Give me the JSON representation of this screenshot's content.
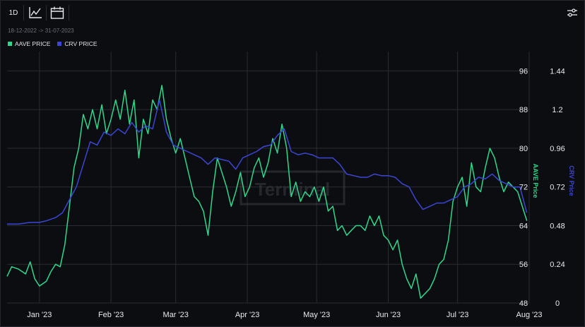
{
  "toolbar": {
    "interval_label": "1D",
    "icons": [
      "line-chart-icon",
      "calendar-icon",
      "sliders-icon"
    ]
  },
  "date_range": "18-12-2022 -> 31-07-2023",
  "colors": {
    "aave": "#2ed88a",
    "crv": "#3b46d6",
    "background": "#0c0d11",
    "grid": "#2a2c33",
    "text": "#e8e9ee",
    "muted": "#6b6f7a"
  },
  "chart_data": {
    "type": "line",
    "title": "",
    "legend": {
      "placement": "top-left",
      "entries": [
        "AAVE PRICE",
        "CRV PRICE"
      ]
    },
    "watermark": "Terminal",
    "grid": true,
    "x_ticks": [
      {
        "label": "Jan '23",
        "date": "2023-01-01"
      },
      {
        "label": "Feb '23",
        "date": "2023-02-01"
      },
      {
        "label": "Mar '23",
        "date": "2023-03-01"
      },
      {
        "label": "Apr '23",
        "date": "2023-04-01"
      },
      {
        "label": "May '23",
        "date": "2023-05-01"
      },
      {
        "label": "Jun '23",
        "date": "2023-06-01"
      },
      {
        "label": "Jul '23",
        "date": "2023-07-01"
      },
      {
        "label": "Aug '23",
        "date": "2023-08-01"
      }
    ],
    "x_range": [
      "2022-12-18",
      "2023-08-01"
    ],
    "left_axis": {
      "label": "AAVE Price",
      "range": [
        48,
        100
      ],
      "ticks": [
        48,
        56,
        64,
        72,
        80,
        88,
        96
      ]
    },
    "right_axis": {
      "label": "CRV Price",
      "range": [
        0,
        1.56
      ],
      "ticks": [
        "0",
        "0.24",
        "0.48",
        "0.72",
        "0.96",
        "1.2",
        "1.44"
      ]
    },
    "series": [
      {
        "name": "AAVE PRICE",
        "axis": "left",
        "points": [
          [
            "2022-12-18",
            53.5
          ],
          [
            "2022-12-20",
            55.5
          ],
          [
            "2022-12-23",
            55
          ],
          [
            "2022-12-26",
            54
          ],
          [
            "2022-12-28",
            56.5
          ],
          [
            "2022-12-30",
            53
          ],
          [
            "2023-01-01",
            51.5
          ],
          [
            "2023-01-04",
            52.5
          ],
          [
            "2023-01-06",
            54.5
          ],
          [
            "2023-01-08",
            56
          ],
          [
            "2023-01-10",
            55.5
          ],
          [
            "2023-01-12",
            60
          ],
          [
            "2023-01-14",
            68
          ],
          [
            "2023-01-16",
            76
          ],
          [
            "2023-01-18",
            80
          ],
          [
            "2023-01-20",
            87
          ],
          [
            "2023-01-22",
            84
          ],
          [
            "2023-01-24",
            88
          ],
          [
            "2023-01-26",
            84
          ],
          [
            "2023-01-28",
            89
          ],
          [
            "2023-01-30",
            83
          ],
          [
            "2023-02-01",
            86
          ],
          [
            "2023-02-03",
            90
          ],
          [
            "2023-02-05",
            86
          ],
          [
            "2023-02-07",
            92
          ],
          [
            "2023-02-09",
            85
          ],
          [
            "2023-02-11",
            90
          ],
          [
            "2023-02-13",
            78
          ],
          [
            "2023-02-15",
            86
          ],
          [
            "2023-02-17",
            83
          ],
          [
            "2023-02-19",
            90
          ],
          [
            "2023-02-21",
            88
          ],
          [
            "2023-02-23",
            93
          ],
          [
            "2023-02-25",
            86
          ],
          [
            "2023-02-27",
            82
          ],
          [
            "2023-03-01",
            79
          ],
          [
            "2023-03-03",
            82
          ],
          [
            "2023-03-05",
            78
          ],
          [
            "2023-03-07",
            74
          ],
          [
            "2023-03-09",
            70
          ],
          [
            "2023-03-11",
            69
          ],
          [
            "2023-03-13",
            67
          ],
          [
            "2023-03-15",
            62
          ],
          [
            "2023-03-17",
            71
          ],
          [
            "2023-03-19",
            78
          ],
          [
            "2023-03-21",
            75
          ],
          [
            "2023-03-23",
            72
          ],
          [
            "2023-03-25",
            68
          ],
          [
            "2023-03-27",
            71
          ],
          [
            "2023-03-29",
            75
          ],
          [
            "2023-03-31",
            70
          ],
          [
            "2023-04-02",
            72
          ],
          [
            "2023-04-04",
            76
          ],
          [
            "2023-04-06",
            78
          ],
          [
            "2023-04-08",
            74
          ],
          [
            "2023-04-10",
            77
          ],
          [
            "2023-04-12",
            82
          ],
          [
            "2023-04-14",
            79
          ],
          [
            "2023-04-16",
            85
          ],
          [
            "2023-04-18",
            80
          ],
          [
            "2023-04-20",
            70
          ],
          [
            "2023-04-22",
            73
          ],
          [
            "2023-04-24",
            69
          ],
          [
            "2023-04-26",
            71
          ],
          [
            "2023-04-28",
            70
          ],
          [
            "2023-04-30",
            72
          ],
          [
            "2023-05-02",
            69
          ],
          [
            "2023-05-04",
            72
          ],
          [
            "2023-05-06",
            67
          ],
          [
            "2023-05-08",
            68
          ],
          [
            "2023-05-10",
            63
          ],
          [
            "2023-05-12",
            64
          ],
          [
            "2023-05-14",
            62
          ],
          [
            "2023-05-16",
            63
          ],
          [
            "2023-05-18",
            64
          ],
          [
            "2023-05-20",
            64
          ],
          [
            "2023-05-22",
            63
          ],
          [
            "2023-05-24",
            66
          ],
          [
            "2023-05-26",
            64
          ],
          [
            "2023-05-28",
            66
          ],
          [
            "2023-05-30",
            62
          ],
          [
            "2023-06-01",
            61
          ],
          [
            "2023-06-03",
            59
          ],
          [
            "2023-06-05",
            61
          ],
          [
            "2023-06-07",
            56
          ],
          [
            "2023-06-09",
            53
          ],
          [
            "2023-06-11",
            51
          ],
          [
            "2023-06-13",
            54
          ],
          [
            "2023-06-15",
            49
          ],
          [
            "2023-06-17",
            50
          ],
          [
            "2023-06-19",
            51
          ],
          [
            "2023-06-21",
            53
          ],
          [
            "2023-06-23",
            56
          ],
          [
            "2023-06-25",
            57
          ],
          [
            "2023-06-27",
            61
          ],
          [
            "2023-06-29",
            69
          ],
          [
            "2023-07-01",
            72
          ],
          [
            "2023-07-03",
            74
          ],
          [
            "2023-07-05",
            68
          ],
          [
            "2023-07-07",
            77
          ],
          [
            "2023-07-09",
            72
          ],
          [
            "2023-07-11",
            71
          ],
          [
            "2023-07-13",
            76
          ],
          [
            "2023-07-15",
            80
          ],
          [
            "2023-07-17",
            78
          ],
          [
            "2023-07-19",
            74
          ],
          [
            "2023-07-21",
            71
          ],
          [
            "2023-07-23",
            73
          ],
          [
            "2023-07-25",
            72
          ],
          [
            "2023-07-27",
            71
          ],
          [
            "2023-07-29",
            68
          ],
          [
            "2023-07-31",
            65
          ]
        ]
      },
      {
        "name": "CRV PRICE",
        "axis": "right",
        "points": [
          [
            "2022-12-18",
            0.49
          ],
          [
            "2022-12-23",
            0.49
          ],
          [
            "2022-12-28",
            0.5
          ],
          [
            "2023-01-01",
            0.5
          ],
          [
            "2023-01-04",
            0.51
          ],
          [
            "2023-01-08",
            0.53
          ],
          [
            "2023-01-11",
            0.56
          ],
          [
            "2023-01-14",
            0.64
          ],
          [
            "2023-01-17",
            0.72
          ],
          [
            "2023-01-20",
            0.86
          ],
          [
            "2023-01-23",
            1.0
          ],
          [
            "2023-01-26",
            0.98
          ],
          [
            "2023-01-29",
            1.06
          ],
          [
            "2023-02-01",
            1.04
          ],
          [
            "2023-02-04",
            1.08
          ],
          [
            "2023-02-07",
            1.05
          ],
          [
            "2023-02-10",
            1.12
          ],
          [
            "2023-02-13",
            1.06
          ],
          [
            "2023-02-16",
            1.1
          ],
          [
            "2023-02-19",
            1.08
          ],
          [
            "2023-02-22",
            1.26
          ],
          [
            "2023-02-25",
            1.06
          ],
          [
            "2023-02-28",
            0.98
          ],
          [
            "2023-03-03",
            0.96
          ],
          [
            "2023-03-06",
            0.94
          ],
          [
            "2023-03-09",
            0.92
          ],
          [
            "2023-03-12",
            0.9
          ],
          [
            "2023-03-15",
            0.86
          ],
          [
            "2023-03-18",
            0.9
          ],
          [
            "2023-03-21",
            0.89
          ],
          [
            "2023-03-24",
            0.88
          ],
          [
            "2023-03-27",
            0.83
          ],
          [
            "2023-03-30",
            0.9
          ],
          [
            "2023-04-02",
            0.92
          ],
          [
            "2023-04-05",
            0.94
          ],
          [
            "2023-04-08",
            0.97
          ],
          [
            "2023-04-11",
            0.98
          ],
          [
            "2023-04-14",
            1.04
          ],
          [
            "2023-04-17",
            1.08
          ],
          [
            "2023-04-20",
            0.94
          ],
          [
            "2023-04-23",
            0.92
          ],
          [
            "2023-04-26",
            0.93
          ],
          [
            "2023-04-29",
            0.92
          ],
          [
            "2023-05-02",
            0.9
          ],
          [
            "2023-05-05",
            0.9
          ],
          [
            "2023-05-08",
            0.9
          ],
          [
            "2023-05-11",
            0.86
          ],
          [
            "2023-05-14",
            0.8
          ],
          [
            "2023-05-17",
            0.79
          ],
          [
            "2023-05-20",
            0.78
          ],
          [
            "2023-05-23",
            0.78
          ],
          [
            "2023-05-26",
            0.8
          ],
          [
            "2023-05-29",
            0.79
          ],
          [
            "2023-06-01",
            0.79
          ],
          [
            "2023-06-04",
            0.78
          ],
          [
            "2023-06-07",
            0.74
          ],
          [
            "2023-06-10",
            0.72
          ],
          [
            "2023-06-13",
            0.64
          ],
          [
            "2023-06-16",
            0.58
          ],
          [
            "2023-06-19",
            0.6
          ],
          [
            "2023-06-22",
            0.62
          ],
          [
            "2023-06-25",
            0.62
          ],
          [
            "2023-06-28",
            0.64
          ],
          [
            "2023-07-01",
            0.66
          ],
          [
            "2023-07-04",
            0.72
          ],
          [
            "2023-07-07",
            0.74
          ],
          [
            "2023-07-10",
            0.78
          ],
          [
            "2023-07-13",
            0.77
          ],
          [
            "2023-07-16",
            0.8
          ],
          [
            "2023-07-19",
            0.76
          ],
          [
            "2023-07-22",
            0.74
          ],
          [
            "2023-07-25",
            0.72
          ],
          [
            "2023-07-28",
            0.72
          ],
          [
            "2023-07-31",
            0.56
          ]
        ]
      }
    ]
  }
}
